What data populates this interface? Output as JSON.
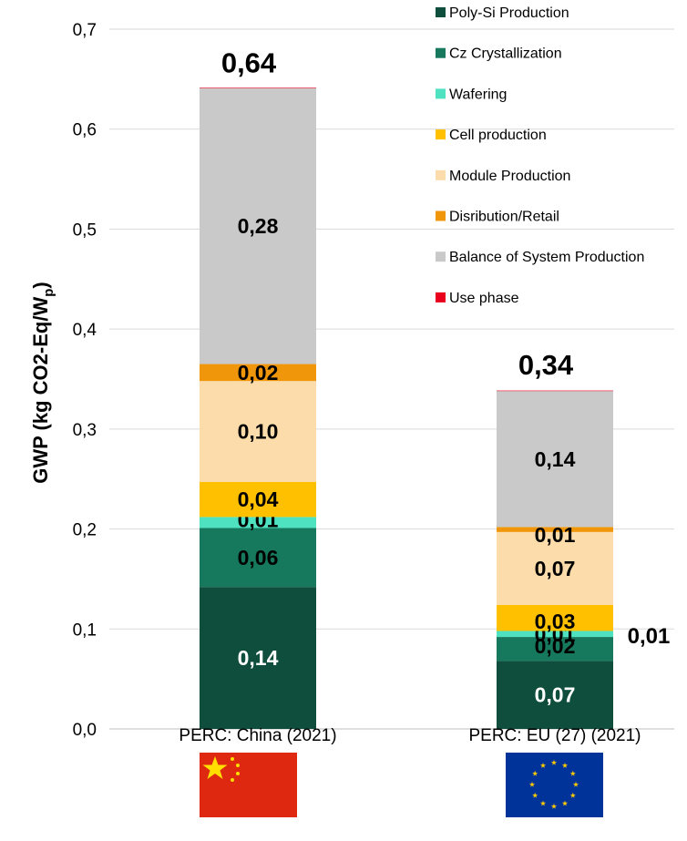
{
  "chart_data": {
    "type": "bar",
    "stacked": true,
    "ylabel_main": "GWP (kg CO2-Eq/W",
    "ylabel_sub": "p",
    "ylabel_end": ")",
    "ylim": [
      0,
      0.7
    ],
    "yticks": [
      "0,0",
      "0,1",
      "0,2",
      "0,3",
      "0,4",
      "0,5",
      "0,6",
      "0,7"
    ],
    "yticks_values": [
      0,
      0.1,
      0.2,
      0.3,
      0.4,
      0.5,
      0.6,
      0.7
    ],
    "grid": true,
    "legend_position": "top-right",
    "categories": [
      "PERC: China (2021)",
      "PERC: EU (27) (2021)"
    ],
    "totals": [
      "0,64",
      "0,34"
    ],
    "totals_values": [
      0.641,
      0.339
    ],
    "series": [
      {
        "name": "Poly-Si Production",
        "color": "#0f4d3c",
        "label_color": "#ffffff",
        "values": [
          0.142,
          0.068
        ],
        "labels": [
          "0,14",
          "0,07"
        ]
      },
      {
        "name": "Cz Crystallization",
        "color": "#16785c",
        "label_color": "#000000",
        "values": [
          0.059,
          0.024
        ],
        "labels": [
          "0,06",
          "0,02"
        ]
      },
      {
        "name": "Wafering",
        "color": "#4ee2c0",
        "label_color": "#000000",
        "values": [
          0.011,
          0.006
        ],
        "labels": [
          "0,01",
          "0,01"
        ]
      },
      {
        "name": "Cell production",
        "color": "#ffc000",
        "label_color": "#000000",
        "values": [
          0.035,
          0.026
        ],
        "labels": [
          "0,04",
          "0,03"
        ]
      },
      {
        "name": "Module Production",
        "color": "#fcdcaa",
        "label_color": "#000000",
        "values": [
          0.101,
          0.073
        ],
        "labels": [
          "0,10",
          "0,07"
        ]
      },
      {
        "name": "Disribution/Retail",
        "color": "#f0960a",
        "label_color": "#000000",
        "values": [
          0.017,
          0.005
        ],
        "labels": [
          "0,02",
          "0,01"
        ]
      },
      {
        "name": "Balance of System Production",
        "color": "#c9c9c9",
        "label_color": "#000000",
        "values": [
          0.276,
          0.136
        ],
        "labels": [
          "0,28",
          "0,14"
        ]
      },
      {
        "name": "Use phase",
        "color": "#e8001c",
        "label_color": "#000000",
        "values": [
          0.0005,
          0.0005
        ],
        "labels": [
          "",
          ""
        ]
      }
    ],
    "outside_label": "0,01",
    "flags": [
      "china-flag",
      "eu-flag"
    ]
  }
}
